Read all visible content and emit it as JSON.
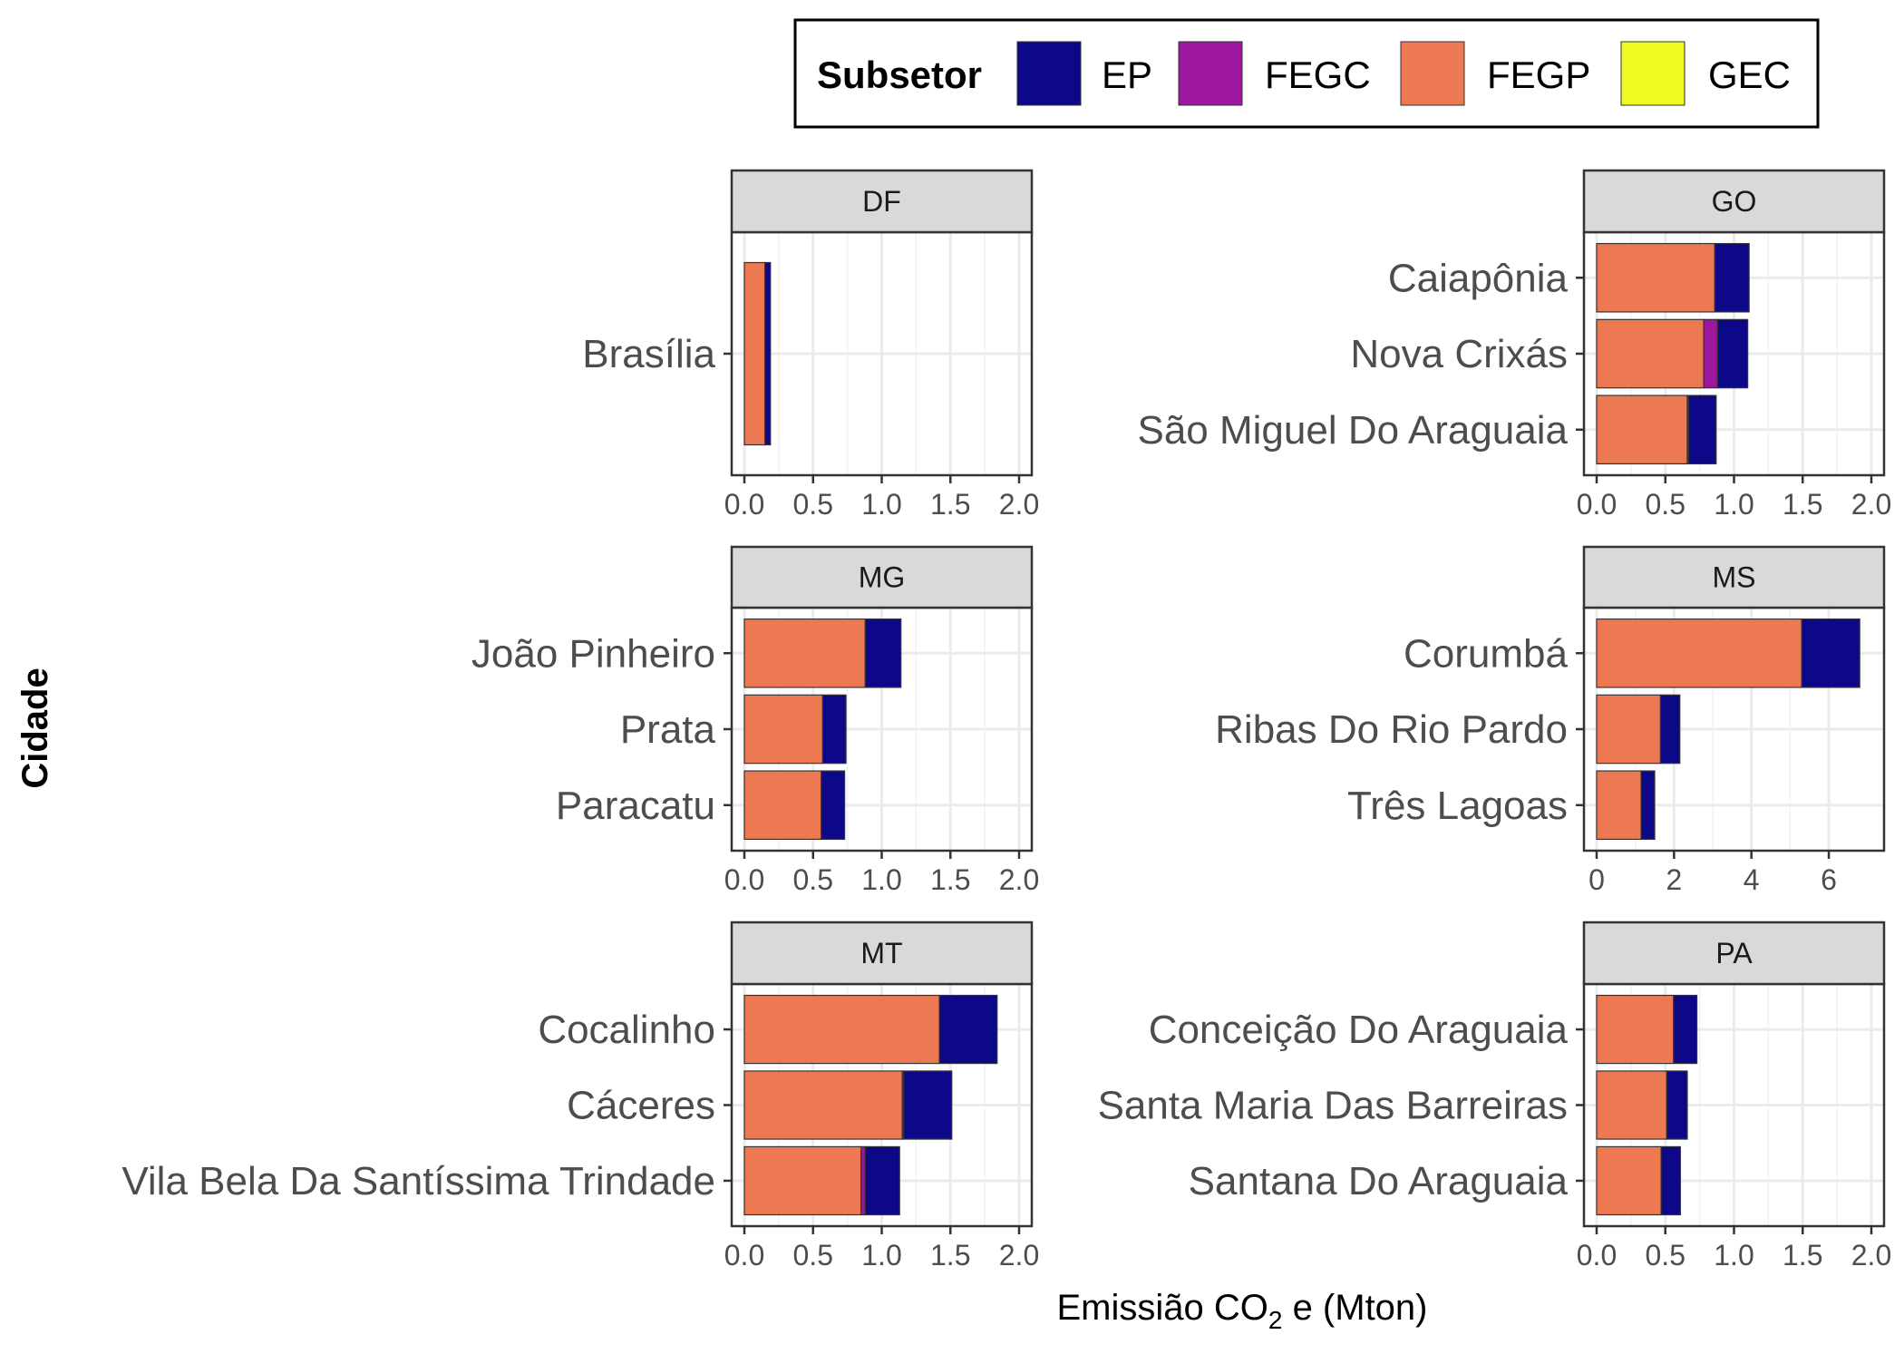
{
  "chart_data": {
    "type": "bar",
    "orientation": "horizontal",
    "stacked": true,
    "xlabel_parts": {
      "pre": "Emissião CO",
      "sub": "2",
      "post": " e (Mton)"
    },
    "ylabel": "Cidade",
    "grid": true,
    "legend": {
      "title": "Subsetor",
      "position": "top",
      "entries": [
        {
          "key": "EP",
          "label": "EP",
          "color": "#0d0887"
        },
        {
          "key": "FEGC",
          "label": "FEGC",
          "color": "#9c179e"
        },
        {
          "key": "FEGP",
          "label": "FEGP",
          "color": "#ed7953"
        },
        {
          "key": "GEC",
          "label": "GEC",
          "color": "#f0f921"
        }
      ]
    },
    "stack_order": [
      "FEGP",
      "FEGC",
      "GEC",
      "EP"
    ],
    "panels": [
      {
        "strip": "DF",
        "xlim": [
          0,
          2.0
        ],
        "xticks": [
          0,
          0.5,
          1,
          1.5,
          2
        ],
        "xtick_labels": [
          "0.0",
          "0.5",
          "1.0",
          "1.5",
          "2.0"
        ],
        "categories": [
          {
            "name": "Brasília",
            "values": {
              "FEGP": 0.15,
              "FEGC": 0,
              "GEC": 0,
              "EP": 0.04
            }
          }
        ]
      },
      {
        "strip": "GO",
        "xlim": [
          0,
          2.0
        ],
        "xticks": [
          0,
          0.5,
          1,
          1.5,
          2
        ],
        "xtick_labels": [
          "0.0",
          "0.5",
          "1.0",
          "1.5",
          "2.0"
        ],
        "categories": [
          {
            "name": "Caiapônia",
            "values": {
              "FEGP": 0.86,
              "FEGC": 0,
              "GEC": 0,
              "EP": 0.25
            }
          },
          {
            "name": "Nova Crixás",
            "values": {
              "FEGP": 0.78,
              "FEGC": 0.1,
              "GEC": 0,
              "EP": 0.22
            }
          },
          {
            "name": "São Miguel Do Araguaia",
            "values": {
              "FEGP": 0.66,
              "FEGC": 0.01,
              "GEC": 0,
              "EP": 0.2
            }
          }
        ]
      },
      {
        "strip": "MG",
        "xlim": [
          0,
          2.0
        ],
        "xticks": [
          0,
          0.5,
          1,
          1.5,
          2
        ],
        "xtick_labels": [
          "0.0",
          "0.5",
          "1.0",
          "1.5",
          "2.0"
        ],
        "categories": [
          {
            "name": "João Pinheiro",
            "values": {
              "FEGP": 0.88,
              "FEGC": 0,
              "GEC": 0,
              "EP": 0.26
            }
          },
          {
            "name": "Prata",
            "values": {
              "FEGP": 0.57,
              "FEGC": 0,
              "GEC": 0,
              "EP": 0.17
            }
          },
          {
            "name": "Paracatu",
            "values": {
              "FEGP": 0.56,
              "FEGC": 0,
              "GEC": 0,
              "EP": 0.17
            }
          }
        ]
      },
      {
        "strip": "MS",
        "xlim": [
          0,
          7.1
        ],
        "xticks": [
          0,
          2,
          4,
          6
        ],
        "xtick_labels": [
          "0",
          "2",
          "4",
          "6"
        ],
        "categories": [
          {
            "name": "Corumbá",
            "values": {
              "FEGP": 5.3,
              "FEGC": 0,
              "GEC": 0,
              "EP": 1.5
            }
          },
          {
            "name": "Ribas Do Rio Pardo",
            "values": {
              "FEGP": 1.65,
              "FEGC": 0,
              "GEC": 0,
              "EP": 0.5
            }
          },
          {
            "name": "Três Lagoas",
            "values": {
              "FEGP": 1.15,
              "FEGC": 0,
              "GEC": 0,
              "EP": 0.35
            }
          }
        ]
      },
      {
        "strip": "MT",
        "xlim": [
          0,
          2.0
        ],
        "xticks": [
          0,
          0.5,
          1,
          1.5,
          2
        ],
        "xtick_labels": [
          "0.0",
          "0.5",
          "1.0",
          "1.5",
          "2.0"
        ],
        "categories": [
          {
            "name": "Cocalinho",
            "values": {
              "FEGP": 1.42,
              "FEGC": 0,
              "GEC": 0,
              "EP": 0.42
            }
          },
          {
            "name": "Cáceres",
            "values": {
              "FEGP": 1.15,
              "FEGC": 0.01,
              "GEC": 0,
              "EP": 0.35
            }
          },
          {
            "name": "Vila Bela Da Santíssima Trindade",
            "values": {
              "FEGP": 0.85,
              "FEGC": 0.03,
              "GEC": 0,
              "EP": 0.25
            }
          }
        ]
      },
      {
        "strip": "PA",
        "xlim": [
          0,
          2.0
        ],
        "xticks": [
          0,
          0.5,
          1,
          1.5,
          2
        ],
        "xtick_labels": [
          "0.0",
          "0.5",
          "1.0",
          "1.5",
          "2.0"
        ],
        "categories": [
          {
            "name": "Conceição Do Araguaia",
            "values": {
              "FEGP": 0.56,
              "FEGC": 0,
              "GEC": 0,
              "EP": 0.17
            }
          },
          {
            "name": "Santa Maria Das Barreiras",
            "values": {
              "FEGP": 0.51,
              "FEGC": 0,
              "GEC": 0,
              "EP": 0.15
            }
          },
          {
            "name": "Santana Do Araguaia",
            "values": {
              "FEGP": 0.47,
              "FEGC": 0,
              "GEC": 0,
              "EP": 0.14
            }
          }
        ]
      }
    ]
  }
}
